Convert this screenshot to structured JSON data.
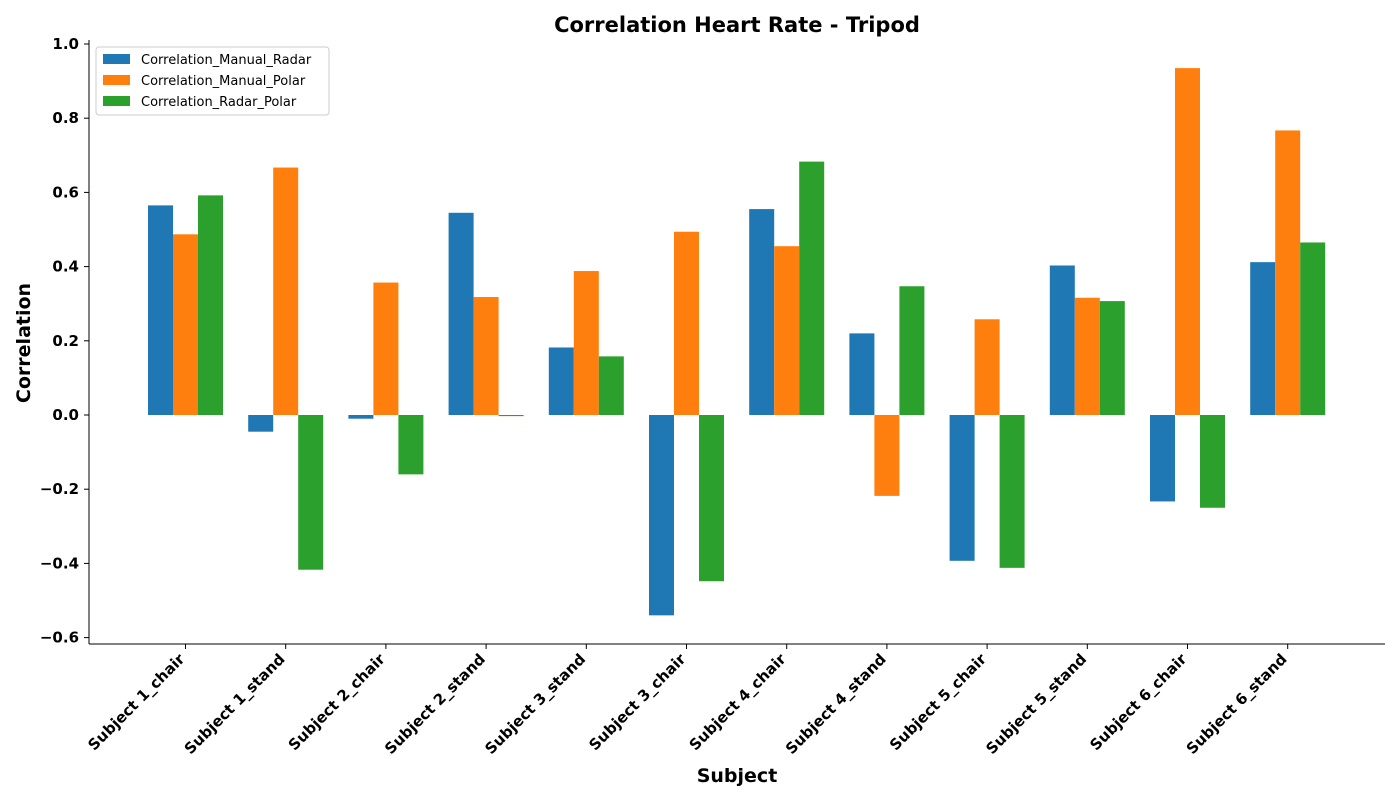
{
  "chart_data": {
    "type": "bar",
    "title": "Correlation Heart Rate - Tripod",
    "xlabel": "Subject",
    "ylabel": "Correlation",
    "categories": [
      "Subject 1_chair",
      "Subject 1_stand",
      "Subject 2_chair",
      "Subject 2_stand",
      "Subject 3_stand",
      "Subject 3_chair",
      "Subject 4_chair",
      "Subject 4_stand",
      "Subject 5_chair",
      "Subject 5_stand",
      "Subject 6_chair",
      "Subject 6_stand"
    ],
    "series": [
      {
        "name": "Correlation_Manual_Radar",
        "color": "#1f77b4",
        "values": [
          0.565,
          -0.045,
          -0.01,
          0.545,
          0.182,
          -0.54,
          0.555,
          0.22,
          -0.393,
          0.403,
          -0.233,
          0.412
        ]
      },
      {
        "name": "Correlation_Manual_Polar",
        "color": "#ff7f0e",
        "values": [
          0.487,
          0.667,
          0.357,
          0.318,
          0.388,
          0.494,
          0.455,
          -0.218,
          0.258,
          0.316,
          0.935,
          0.767
        ]
      },
      {
        "name": "Correlation_Radar_Polar",
        "color": "#2ca02c",
        "values": [
          0.592,
          -0.417,
          -0.16,
          -0.003,
          0.158,
          -0.448,
          0.683,
          0.347,
          -0.412,
          0.307,
          -0.25,
          0.465
        ]
      }
    ],
    "yticks": [
      "1.0",
      "0.8",
      "0.6",
      "0.4",
      "0.2",
      "0.0",
      "−0.2",
      "−0.4",
      "−0.6"
    ],
    "ytick_values": [
      1.0,
      0.8,
      0.6,
      0.4,
      0.2,
      0.0,
      -0.2,
      -0.4,
      -0.6
    ],
    "ylim": [
      -0.62,
      1.0
    ],
    "grid": false,
    "legend_position": "top-left"
  }
}
